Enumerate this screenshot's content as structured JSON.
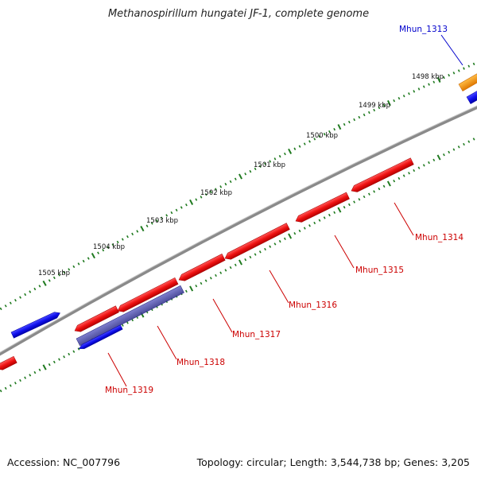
{
  "title": "Methanospirillum hungatei JF-1, complete genome",
  "footer": {
    "accession": "Accession: NC_007796",
    "summary": "Topology: circular; Length: 3,544,738 bp; Genes: 3,205"
  },
  "scale": {
    "unit": "kbp",
    "labels": [
      "1498 kbp",
      "1499 kbp",
      "1500 kbp",
      "1501 kbp",
      "1502 kbp",
      "1503 kbp",
      "1504 kbp",
      "1505 kbp"
    ]
  },
  "genes": [
    {
      "name": "Mhun_1313",
      "color": "#0000cc"
    },
    {
      "name": "Mhun_1314",
      "color": "#cc0000"
    },
    {
      "name": "Mhun_1315",
      "color": "#cc0000"
    },
    {
      "name": "Mhun_1316",
      "color": "#cc0000"
    },
    {
      "name": "Mhun_1317",
      "color": "#cc0000"
    },
    {
      "name": "Mhun_1318",
      "color": "#cc0000"
    },
    {
      "name": "Mhun_1319",
      "color": "#cc0000"
    }
  ],
  "colors": {
    "backbone": "#8a8a8a",
    "ticks": "#1f7a1f",
    "feature_red": "#ee1111",
    "feature_blue": "#1010ee",
    "feature_orange": "#ff9900",
    "feature_slate": "#5050a8"
  }
}
